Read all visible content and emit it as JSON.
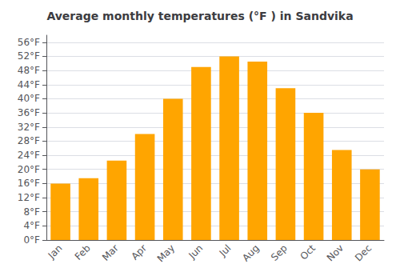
{
  "chart_data": {
    "type": "bar",
    "title": "Average monthly temperatures (°F ) in Sandvika",
    "categories": [
      "Jan",
      "Feb",
      "Mar",
      "Apr",
      "May",
      "Jun",
      "Jul",
      "Aug",
      "Sep",
      "Oct",
      "Nov",
      "Dec"
    ],
    "values": [
      16,
      17.5,
      22.5,
      30,
      40,
      49,
      52,
      50.5,
      43,
      36,
      25.5,
      20
    ],
    "color": "#FFA500",
    "ylim": [
      0,
      58
    ],
    "yticks": [
      {
        "value": 0,
        "label": "0°F"
      },
      {
        "value": 4,
        "label": "4°F"
      },
      {
        "value": 8,
        "label": "8°F"
      },
      {
        "value": 12,
        "label": "12°F"
      },
      {
        "value": 16,
        "label": "16°F"
      },
      {
        "value": 20,
        "label": "20°F"
      },
      {
        "value": 24,
        "label": "24°F"
      },
      {
        "value": 28,
        "label": "28°F"
      },
      {
        "value": 32,
        "label": "32°F"
      },
      {
        "value": 36,
        "label": "36°F"
      },
      {
        "value": 40,
        "label": "40°F"
      },
      {
        "value": 44,
        "label": "44°F"
      },
      {
        "value": 48,
        "label": "48°F"
      },
      {
        "value": 52,
        "label": "52°F"
      },
      {
        "value": 56,
        "label": "56°F"
      }
    ],
    "grid": true
  }
}
